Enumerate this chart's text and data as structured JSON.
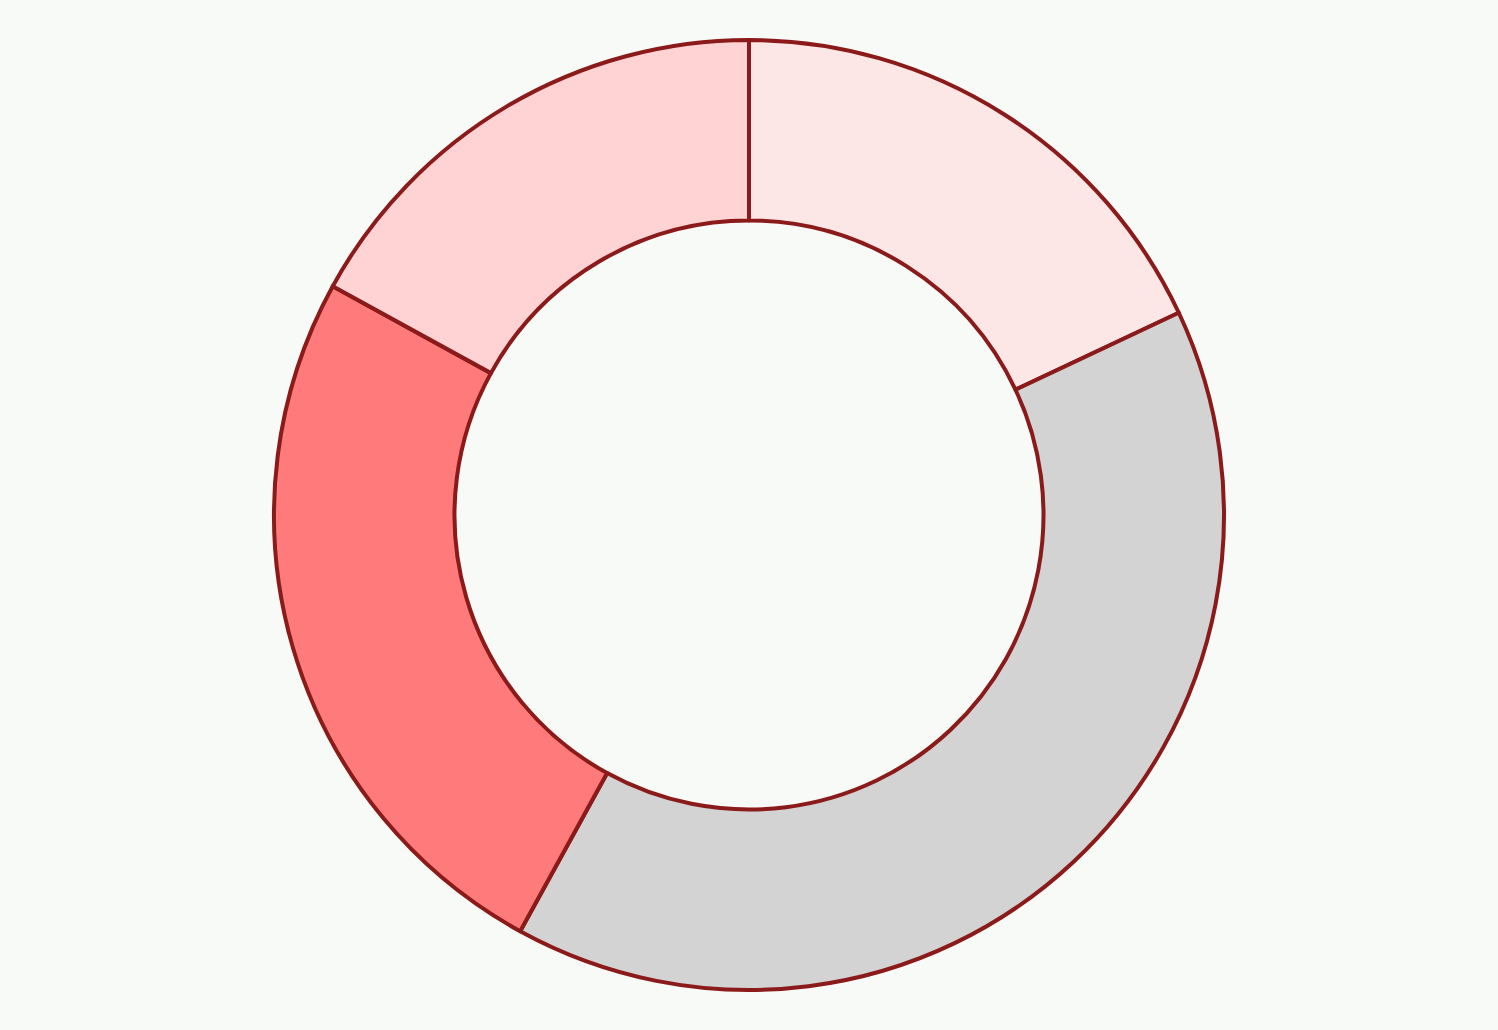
{
  "chart_data": {
    "type": "donut",
    "categories": [
      null,
      null,
      null,
      null
    ],
    "values": [
      18,
      40,
      25,
      17
    ],
    "colors": [
      "#fde6e6",
      "#d3d3d3",
      "#ff7b7b",
      "#ffd3d3"
    ],
    "legend": false
  }
}
